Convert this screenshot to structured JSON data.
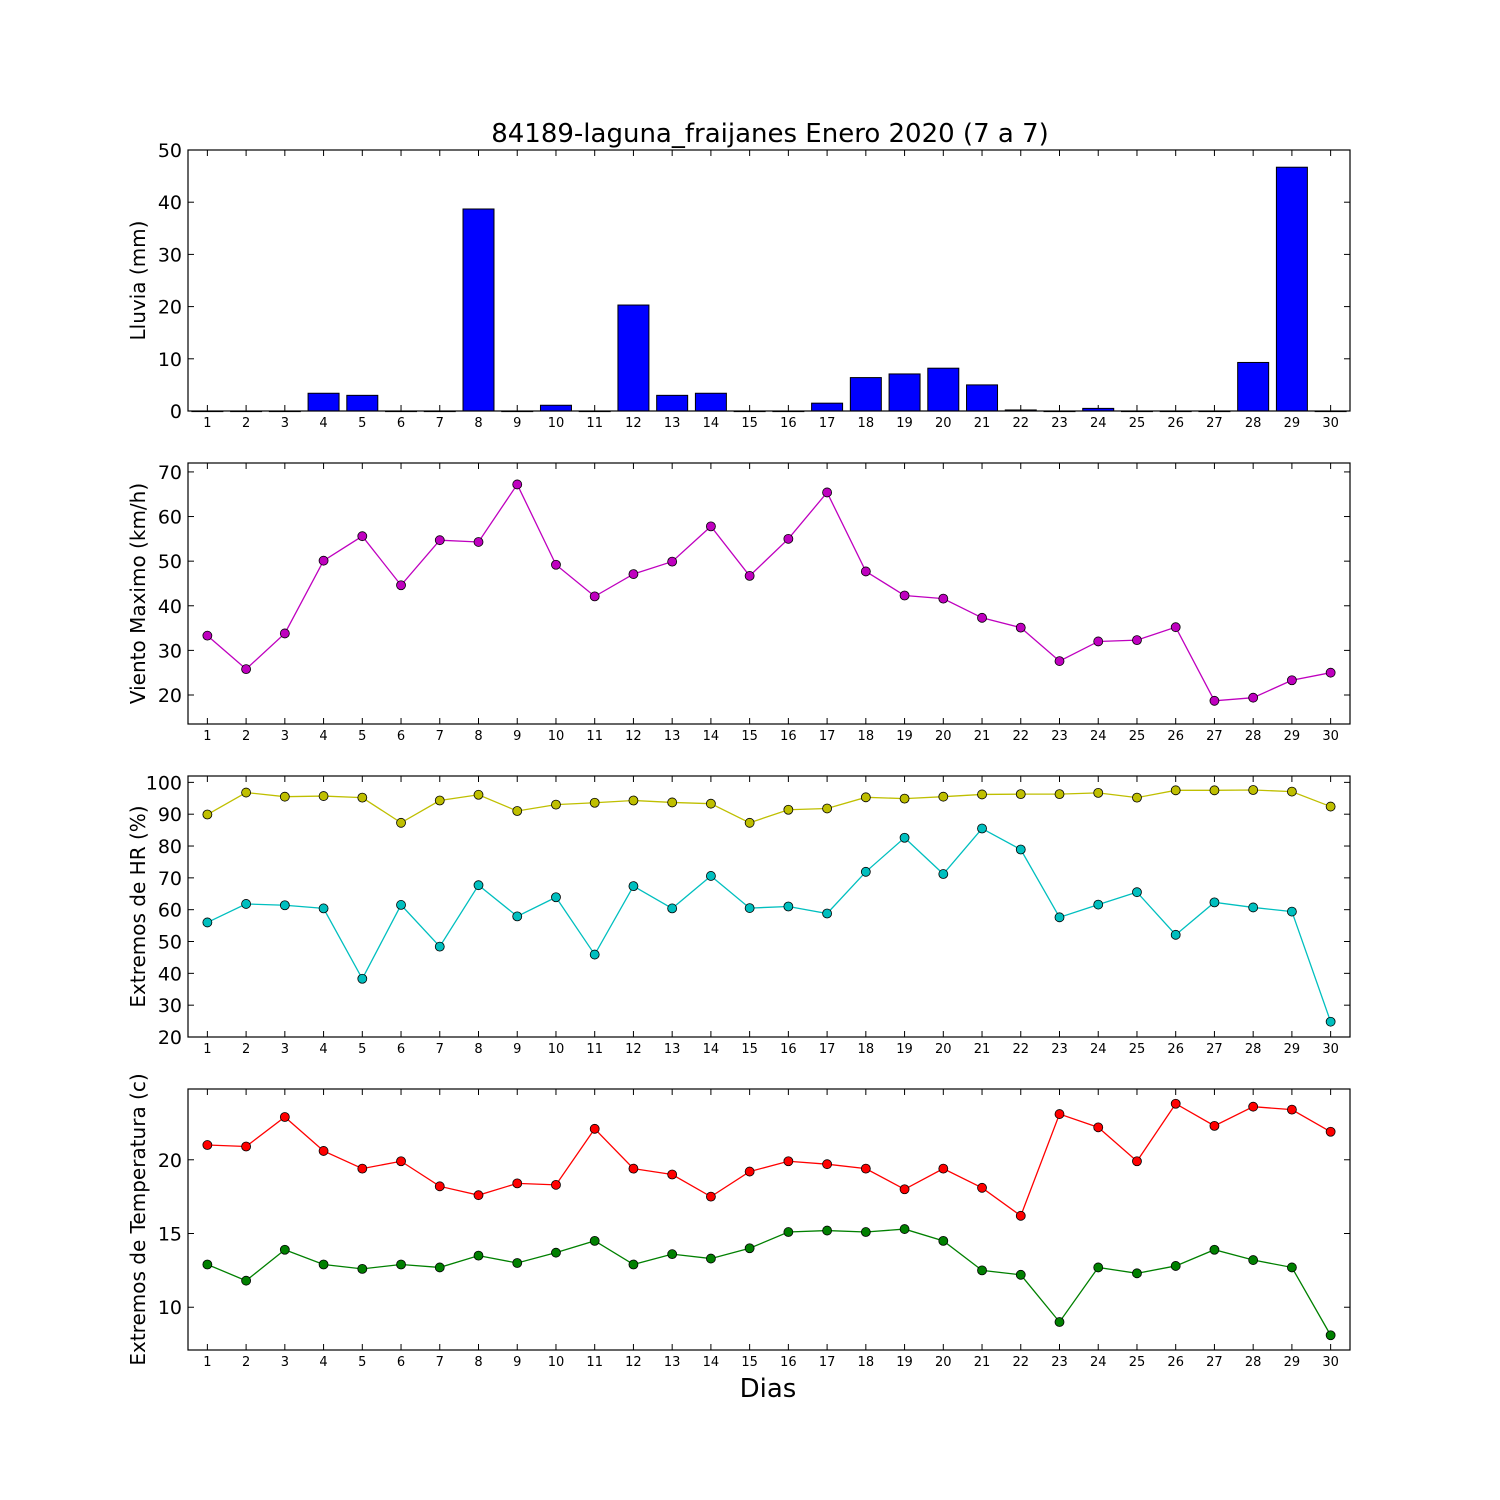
{
  "chart_data": {
    "title": "84189-laguna_fraijanes Enero 2020  (7 a 7)",
    "xlabel": "Dias",
    "x": [
      1,
      2,
      3,
      4,
      5,
      6,
      7,
      8,
      9,
      10,
      11,
      12,
      13,
      14,
      15,
      16,
      17,
      18,
      19,
      20,
      21,
      22,
      23,
      24,
      25,
      26,
      27,
      28,
      29,
      30
    ],
    "xlim": [
      0.5,
      30.5
    ],
    "panels": [
      {
        "type": "bar",
        "ylabel": "Lluvia (mm)",
        "ylim": [
          0,
          50
        ],
        "yticks": [
          0,
          10,
          20,
          30,
          40,
          50
        ],
        "series": [
          {
            "color": "#0000ff",
            "values": [
              0,
              0,
              0,
              3.4,
              3.0,
              0,
              0,
              38.7,
              0,
              1.1,
              0,
              20.3,
              3.0,
              3.4,
              0,
              0,
              1.5,
              6.4,
              7.1,
              8.2,
              5.0,
              0.2,
              0,
              0.5,
              0,
              0,
              0,
              9.3,
              46.7,
              0
            ]
          }
        ]
      },
      {
        "type": "line",
        "ylabel": "Viento Maximo (km/h)",
        "ylim": [
          13.5,
          72
        ],
        "yticks": [
          20,
          30,
          40,
          50,
          60,
          70
        ],
        "series": [
          {
            "color": "#bf00bf",
            "values": [
              33.3,
              25.8,
              33.8,
              50.1,
              55.6,
              44.6,
              54.7,
              54.3,
              67.2,
              49.2,
              42.1,
              47.1,
              49.9,
              57.8,
              46.7,
              55.0,
              65.4,
              47.7,
              42.3,
              41.6,
              37.3,
              35.1,
              27.6,
              32.0,
              32.3,
              35.2,
              18.7,
              19.4,
              23.3,
              25.0
            ]
          }
        ]
      },
      {
        "type": "line",
        "ylabel": "Extremos de HR (%)",
        "ylim": [
          20,
          102
        ],
        "yticks": [
          20,
          30,
          40,
          50,
          60,
          70,
          80,
          90,
          100
        ],
        "series": [
          {
            "color": "#bfbf00",
            "values": [
              89.9,
              96.8,
              95.5,
              95.7,
              95.2,
              87.3,
              94.3,
              96.1,
              91.0,
              93.0,
              93.6,
              94.3,
              93.7,
              93.3,
              87.3,
              91.4,
              91.8,
              95.3,
              94.9,
              95.5,
              96.2,
              96.3,
              96.3,
              96.7,
              95.2,
              97.5,
              97.5,
              97.6,
              97.1,
              92.4
            ]
          },
          {
            "color": "#00bfbf",
            "values": [
              56.0,
              61.8,
              61.4,
              60.4,
              38.3,
              61.5,
              48.4,
              67.7,
              57.9,
              63.9,
              45.9,
              67.4,
              60.4,
              70.6,
              60.5,
              61.0,
              58.8,
              71.9,
              82.6,
              71.2,
              85.5,
              78.9,
              57.6,
              61.6,
              65.5,
              52.1,
              62.3,
              60.7,
              59.4,
              24.8
            ]
          }
        ]
      },
      {
        "type": "line",
        "ylabel": "Extremos de Temperatura (c)",
        "ylim": [
          7.1,
          24.8
        ],
        "yticks": [
          10,
          15,
          20
        ],
        "series": [
          {
            "color": "#ff0000",
            "values": [
              21.0,
              20.9,
              22.9,
              20.6,
              19.4,
              19.9,
              18.2,
              17.6,
              18.4,
              18.3,
              22.1,
              19.4,
              19.0,
              17.5,
              19.2,
              19.9,
              19.7,
              19.4,
              18.0,
              19.4,
              18.1,
              16.2,
              23.1,
              22.2,
              19.9,
              23.8,
              22.3,
              23.6,
              23.4,
              21.9
            ]
          },
          {
            "color": "#008000",
            "values": [
              12.9,
              11.8,
              13.9,
              12.9,
              12.6,
              12.9,
              12.7,
              13.5,
              13.0,
              13.7,
              14.5,
              12.9,
              13.6,
              13.3,
              14.0,
              15.1,
              15.2,
              15.1,
              15.3,
              14.5,
              12.5,
              12.2,
              9.0,
              12.7,
              12.3,
              12.8,
              13.9,
              13.2,
              12.7,
              8.1
            ]
          }
        ]
      }
    ]
  }
}
